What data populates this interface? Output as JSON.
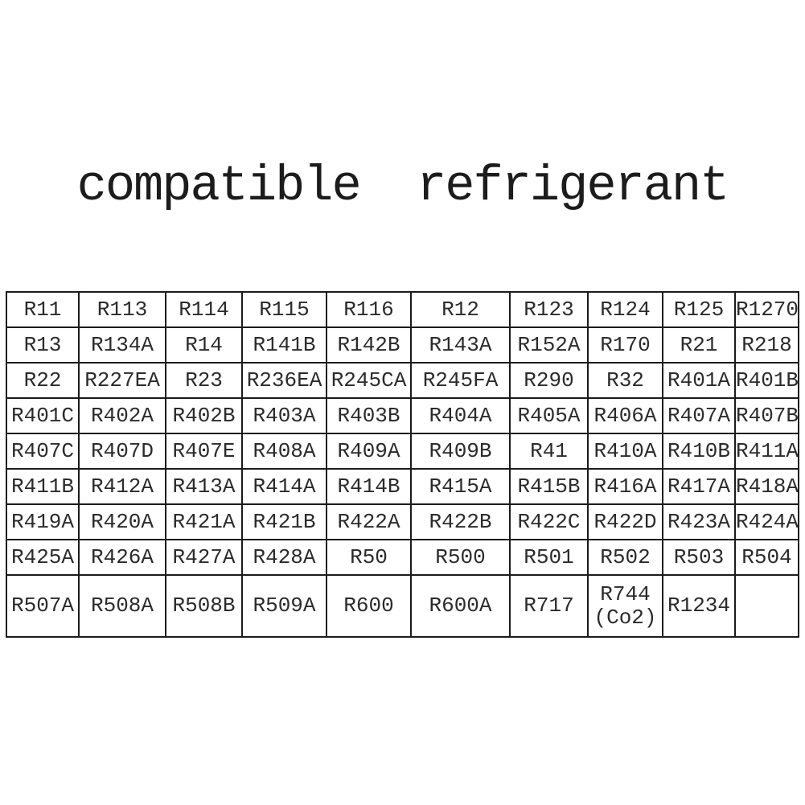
{
  "title": "compatible  refrigerant",
  "colors": {
    "background": "#ffffff",
    "text": "#2b2b2b",
    "border": "#1b1b1b"
  },
  "table": {
    "rows": [
      [
        "R11",
        "R113",
        "R114",
        "R115",
        "R116",
        "R12",
        "R123",
        "R124",
        "R125",
        "R1270"
      ],
      [
        "R13",
        "R134A",
        "R14",
        "R141B",
        "R142B",
        "R143A",
        "R152A",
        "R170",
        "R21",
        "R218"
      ],
      [
        "R22",
        "R227EA",
        "R23",
        "R236EA",
        "R245CA",
        "R245FA",
        "R290",
        "R32",
        "R401A",
        "R401B"
      ],
      [
        "R401C",
        "R402A",
        "R402B",
        "R403A",
        "R403B",
        "R404A",
        "R405A",
        "R406A",
        "R407A",
        "R407B"
      ],
      [
        "R407C",
        "R407D",
        "R407E",
        "R408A",
        "R409A",
        "R409B",
        "R41",
        "R410A",
        "R410B",
        "R411A"
      ],
      [
        "R411B",
        "R412A",
        "R413A",
        "R414A",
        "R414B",
        "R415A",
        "R415B",
        "R416A",
        "R417A",
        "R418A"
      ],
      [
        "R419A",
        "R420A",
        "R421A",
        "R421B",
        "R422A",
        "R422B",
        "R422C",
        "R422D",
        "R423A",
        "R424A"
      ],
      [
        "R425A",
        "R426A",
        "R427A",
        "R428A",
        "R50",
        "R500",
        "R501",
        "R502",
        "R503",
        "R504"
      ],
      [
        "R507A",
        "R508A",
        "R508B",
        "R509A",
        "R600",
        "R600A",
        "R717",
        "R744\n(Co2)",
        "R1234",
        ""
      ]
    ]
  }
}
